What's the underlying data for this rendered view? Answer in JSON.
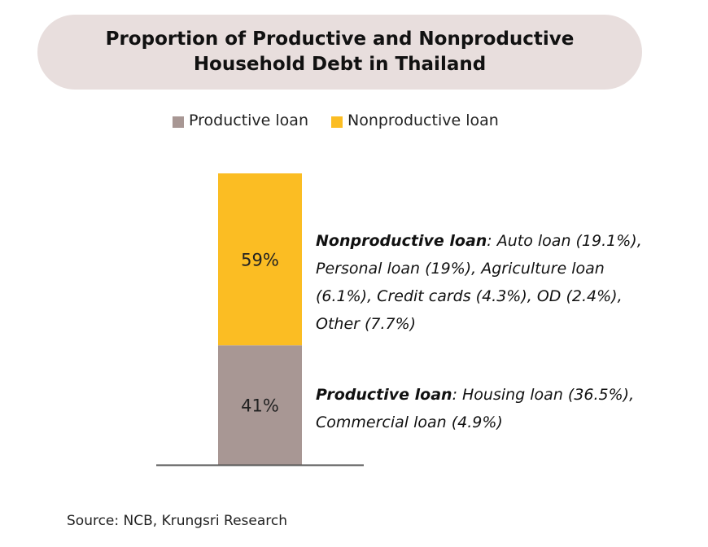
{
  "colors": {
    "productive": "#a89794",
    "nonproductive": "#fbbd23",
    "title_bg": "#e8dedd",
    "axis": "#555555"
  },
  "chart_data": {
    "type": "bar",
    "stacked": true,
    "title": [
      "Proportion of Productive and Nonproductive",
      "Household Debt in Thailand"
    ],
    "categories": [
      ""
    ],
    "series": [
      {
        "name": "Productive loan",
        "values": [
          41
        ],
        "label": "41%"
      },
      {
        "name": "Nonproductive loan",
        "values": [
          59
        ],
        "label": "59%"
      }
    ],
    "ylim": [
      0,
      100
    ],
    "legend": "top",
    "grid": false
  },
  "notes": {
    "nonproductive": {
      "label": "Nonproductive loan",
      "lines": [
        ": Auto loan (19.1%),",
        "Personal loan (19%), Agriculture loan",
        "(6.1%), Credit cards (4.3%), OD (2.4%),",
        "Other (7.7%)"
      ]
    },
    "productive": {
      "label": "Productive loan",
      "lines": [
        ": Housing loan (36.5%),",
        "Commercial loan (4.9%)"
      ]
    }
  },
  "source": "Source: NCB, Krungsri Research"
}
